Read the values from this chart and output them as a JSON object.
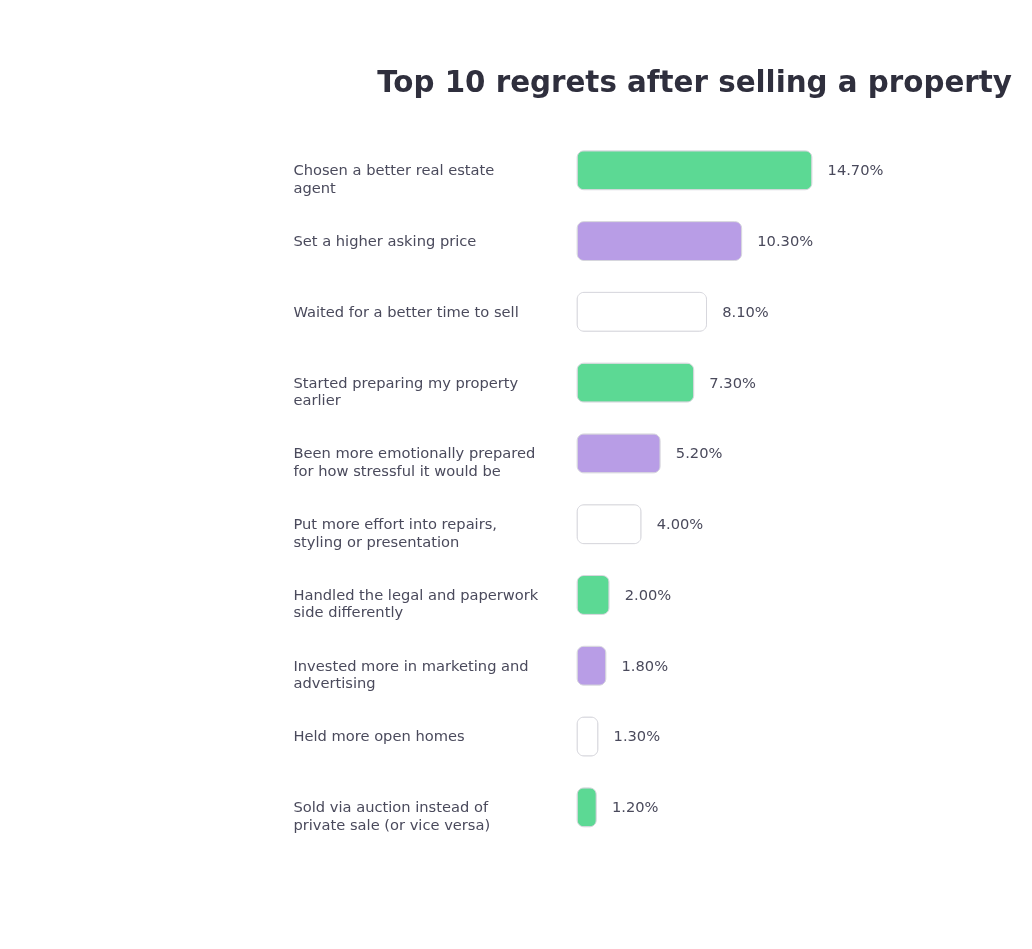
{
  "chart_data": {
    "type": "bar",
    "orientation": "horizontal",
    "title": "Top 10 regrets after selling a property",
    "categories": [
      "Chosen a better real estate agent",
      "Set a higher asking price",
      "Waited for a better time to sell",
      "Started preparing my property earlier",
      "Been more emotionally prepared for how stressful it would be",
      "Put more effort into repairs, styling or presentation",
      "Handled the legal and paperwork side differently",
      "Invested more in marketing and advertising",
      "Held more open homes",
      "Sold via auction instead of private sale (or vice versa)"
    ],
    "values": [
      14.7,
      10.3,
      8.1,
      7.3,
      5.2,
      4.0,
      2.0,
      1.8,
      1.3,
      1.2
    ],
    "colors": [
      "#5cd994",
      "#b89de6",
      "#ffffff",
      "#5cd994",
      "#b89de6",
      "#ffffff",
      "#5cd994",
      "#b89de6",
      "#ffffff",
      "#5cd994"
    ],
    "value_labels": [
      "14.70%",
      "10.30%",
      "8.10%",
      "7.30%",
      "5.20%",
      "4.00%",
      "2.00%",
      "1.80%",
      "1.30%",
      "1.20%"
    ],
    "tick_labels": "y"
  }
}
